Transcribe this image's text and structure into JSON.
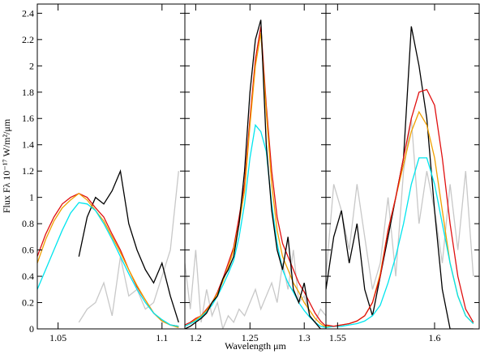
{
  "chart_data": [
    {
      "type": "line",
      "y_label": "Flux Fλ 10⁻¹⁷ W/m²/μm",
      "x": [
        1.04,
        1.044,
        1.048,
        1.052,
        1.056,
        1.06,
        1.064,
        1.068,
        1.072,
        1.076,
        1.08,
        1.084,
        1.088,
        1.092,
        1.096,
        1.1,
        1.104,
        1.108
      ],
      "xlim": [
        1.04,
        1.111
      ],
      "xticks": [
        1.05,
        1.1
      ],
      "ylim": [
        0,
        2.47
      ],
      "yticks": [
        0,
        0.2,
        0.4,
        0.6,
        0.8,
        1,
        1.2,
        1.4,
        1.6,
        1.8,
        2,
        2.2,
        2.4
      ],
      "series": [
        {
          "color": "#c8c8c8",
          "values": [
            null,
            null,
            null,
            null,
            null,
            0.05,
            0.15,
            0.2,
            0.35,
            0.1,
            0.55,
            0.25,
            0.3,
            0.15,
            0.2,
            0.4,
            0.6,
            1.2
          ]
        },
        {
          "color": "#000000",
          "values": [
            null,
            null,
            null,
            null,
            null,
            0.55,
            0.85,
            1.0,
            0.95,
            1.05,
            1.2,
            0.8,
            0.6,
            0.45,
            0.35,
            0.5,
            0.25,
            0.05
          ]
        },
        {
          "color": "#e01010",
          "values": [
            0.55,
            0.72,
            0.85,
            0.95,
            1.0,
            1.03,
            1.0,
            0.92,
            0.85,
            0.72,
            0.6,
            0.45,
            0.32,
            0.22,
            0.12,
            0.06,
            0.03,
            0.02
          ]
        },
        {
          "color": "#f0a000",
          "values": [
            0.5,
            0.68,
            0.82,
            0.92,
            0.98,
            1.03,
            0.98,
            0.9,
            0.82,
            0.7,
            0.58,
            0.45,
            0.33,
            0.22,
            0.12,
            0.06,
            0.03,
            0.01
          ]
        },
        {
          "color": "#00e5ee",
          "values": [
            0.3,
            0.45,
            0.6,
            0.75,
            0.88,
            0.96,
            0.95,
            0.9,
            0.8,
            0.68,
            0.55,
            0.42,
            0.3,
            0.2,
            0.12,
            0.07,
            0.03,
            0.02
          ]
        }
      ]
    },
    {
      "type": "line",
      "x_label": "Wavelength μm",
      "x": [
        1.19,
        1.195,
        1.2,
        1.205,
        1.21,
        1.215,
        1.22,
        1.225,
        1.23,
        1.235,
        1.24,
        1.245,
        1.25,
        1.255,
        1.26,
        1.265,
        1.27,
        1.275,
        1.28,
        1.285,
        1.29,
        1.295,
        1.3,
        1.305,
        1.31,
        1.315,
        1.32
      ],
      "xlim": [
        1.19,
        1.32
      ],
      "xticks": [
        1.2,
        1.25,
        1.3
      ],
      "ylim": [
        0,
        2.47
      ],
      "series": [
        {
          "color": "#c8c8c8",
          "values": [
            0.5,
            0.15,
            0.6,
            0.05,
            0.3,
            0.1,
            0.2,
            0.0,
            0.1,
            0.05,
            0.15,
            0.1,
            0.2,
            0.3,
            0.15,
            0.25,
            0.35,
            0.2,
            0.5,
            0.3,
            0.6,
            0.2,
            0.25,
            0.1,
            0.05,
            0.15,
            0.1
          ]
        },
        {
          "color": "#e01010",
          "values": [
            0.03,
            0.05,
            0.08,
            0.1,
            0.15,
            0.2,
            0.28,
            0.38,
            0.5,
            0.62,
            0.85,
            1.1,
            1.6,
            2.05,
            2.3,
            1.7,
            1.2,
            0.85,
            0.65,
            0.55,
            0.45,
            0.35,
            0.28,
            0.2,
            0.12,
            0.06,
            0.02
          ]
        },
        {
          "color": "#f0a000",
          "values": [
            0.02,
            0.04,
            0.07,
            0.1,
            0.14,
            0.2,
            0.27,
            0.36,
            0.47,
            0.6,
            0.8,
            1.05,
            1.55,
            2.0,
            2.25,
            1.65,
            1.1,
            0.75,
            0.55,
            0.45,
            0.35,
            0.28,
            0.2,
            0.14,
            0.08,
            0.04,
            0.01
          ]
        },
        {
          "color": "#00e5ee",
          "values": [
            0.02,
            0.04,
            0.06,
            0.09,
            0.13,
            0.18,
            0.25,
            0.33,
            0.42,
            0.52,
            0.7,
            0.95,
            1.3,
            1.55,
            1.5,
            1.35,
            0.95,
            0.65,
            0.45,
            0.35,
            0.28,
            0.2,
            0.14,
            0.09,
            0.05,
            0.02,
            0.01
          ]
        },
        {
          "color": "#000000",
          "values": [
            0.0,
            0.02,
            0.05,
            0.08,
            0.12,
            0.2,
            0.25,
            0.38,
            0.45,
            0.55,
            0.8,
            1.2,
            1.8,
            2.2,
            2.35,
            1.4,
            0.9,
            0.6,
            0.45,
            0.7,
            0.3,
            0.2,
            0.35,
            0.1,
            0.05,
            0.0,
            0.0
          ]
        }
      ]
    },
    {
      "type": "line",
      "x": [
        1.544,
        1.548,
        1.552,
        1.556,
        1.56,
        1.564,
        1.568,
        1.572,
        1.576,
        1.58,
        1.584,
        1.588,
        1.592,
        1.596,
        1.6,
        1.604,
        1.608,
        1.612,
        1.616,
        1.62
      ],
      "xlim": [
        1.544,
        1.623
      ],
      "xticks": [
        1.55,
        1.6
      ],
      "ylim": [
        0,
        2.47
      ],
      "series": [
        {
          "color": "#c8c8c8",
          "values": [
            0.4,
            1.1,
            0.9,
            0.6,
            1.1,
            0.7,
            0.3,
            0.5,
            1.0,
            0.4,
            1.2,
            1.6,
            0.8,
            1.2,
            0.9,
            0.5,
            1.1,
            0.6,
            1.2,
            0.4
          ]
        },
        {
          "color": "#000000",
          "values": [
            0.3,
            0.7,
            0.9,
            0.5,
            0.8,
            0.3,
            0.1,
            0.4,
            0.7,
            1.0,
            1.3,
            2.3,
            2.0,
            1.6,
            0.9,
            0.3,
            0.0,
            0.0,
            0.0,
            0.0
          ]
        },
        {
          "color": "#f0a000",
          "values": [
            0.02,
            0.02,
            0.03,
            0.04,
            0.06,
            0.1,
            0.2,
            0.42,
            0.75,
            1.0,
            1.25,
            1.5,
            1.65,
            1.55,
            1.3,
            0.9,
            0.5,
            0.25,
            0.1,
            0.04
          ]
        },
        {
          "color": "#00e5ee",
          "values": [
            0.01,
            0.02,
            0.02,
            0.03,
            0.04,
            0.06,
            0.1,
            0.18,
            0.35,
            0.55,
            0.8,
            1.1,
            1.3,
            1.3,
            1.1,
            0.8,
            0.5,
            0.25,
            0.1,
            0.04
          ]
        },
        {
          "color": "#e01010",
          "values": [
            0.03,
            0.02,
            0.03,
            0.04,
            0.06,
            0.1,
            0.2,
            0.4,
            0.75,
            1.0,
            1.3,
            1.6,
            1.8,
            1.82,
            1.7,
            1.3,
            0.8,
            0.4,
            0.15,
            0.05
          ]
        }
      ]
    }
  ]
}
